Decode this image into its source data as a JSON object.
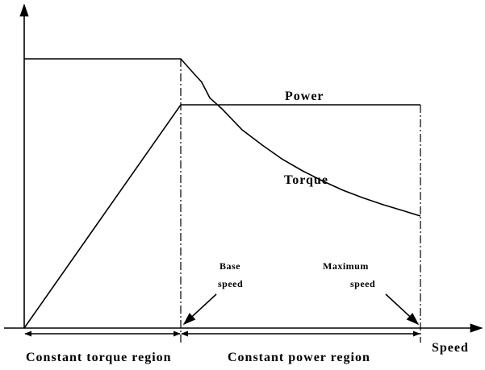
{
  "labels": {
    "power": "Power",
    "torque": "Torque",
    "base_speed": [
      "Base",
      "speed"
    ],
    "maximum_speed": [
      "Maximum",
      "speed"
    ],
    "x_axis": "Speed",
    "regions": [
      "Constant torque region",
      "Constant power region"
    ]
  }
}
